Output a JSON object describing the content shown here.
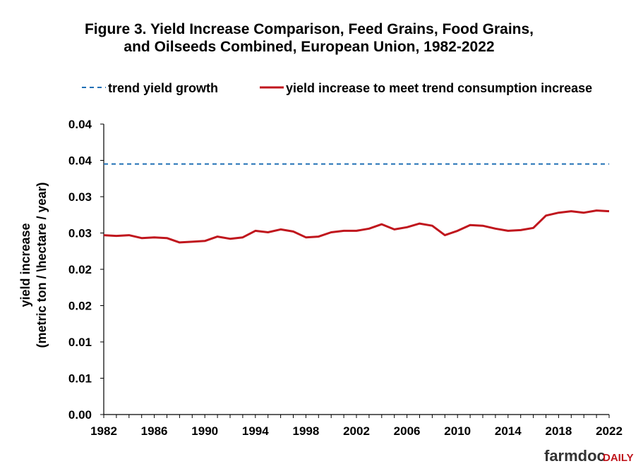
{
  "chart_data": {
    "type": "line",
    "title_line1": "Figure 3. Yield Increase Comparison, Feed Grains, Food Grains,",
    "title_line2": "and Oilseeds Combined, European Union, 1982-2022",
    "ylabel_line1": "yield increase",
    "ylabel_line2": "(metric ton / \\hectare / year)",
    "xlabel": "",
    "xlim": [
      1982,
      2022
    ],
    "ylim": [
      0,
      0.04
    ],
    "y_tick_labels": [
      "0.00",
      "0.01",
      "0.01",
      "0.02",
      "0.02",
      "0.03",
      "0.03",
      "0.04",
      "0.04"
    ],
    "x_ticks": [
      1982,
      1986,
      1990,
      1994,
      1998,
      2002,
      2006,
      2010,
      2014,
      2018,
      2022
    ],
    "legend_position": "top",
    "series": [
      {
        "name": "trend yield growth",
        "style": "dashed",
        "color": "#1f6fb5",
        "x": [
          1982,
          2022
        ],
        "values": [
          0.0345,
          0.0345
        ]
      },
      {
        "name": "yield increase to meet trend consumption increase",
        "style": "solid",
        "color": "#c0161d",
        "x": [
          1982,
          1983,
          1984,
          1985,
          1986,
          1987,
          1988,
          1989,
          1990,
          1991,
          1992,
          1993,
          1994,
          1995,
          1996,
          1997,
          1998,
          1999,
          2000,
          2001,
          2002,
          2003,
          2004,
          2005,
          2006,
          2007,
          2008,
          2009,
          2010,
          2011,
          2012,
          2013,
          2014,
          2015,
          2016,
          2017,
          2018,
          2019,
          2020,
          2021,
          2022
        ],
        "values": [
          0.0247,
          0.0246,
          0.0247,
          0.0243,
          0.0244,
          0.0243,
          0.0237,
          0.0238,
          0.0239,
          0.0245,
          0.0242,
          0.0244,
          0.0253,
          0.0251,
          0.0255,
          0.0252,
          0.0244,
          0.0245,
          0.0251,
          0.0253,
          0.0253,
          0.0256,
          0.0262,
          0.0255,
          0.0258,
          0.0263,
          0.026,
          0.0247,
          0.0253,
          0.0261,
          0.026,
          0.0256,
          0.0253,
          0.0254,
          0.0257,
          0.0274,
          0.0278,
          0.028,
          0.0278,
          0.0281,
          0.028
        ]
      }
    ]
  },
  "branding": {
    "logo_main": "farmdoc",
    "logo_accent": "DAILY",
    "accent_color": "#c0161d"
  }
}
